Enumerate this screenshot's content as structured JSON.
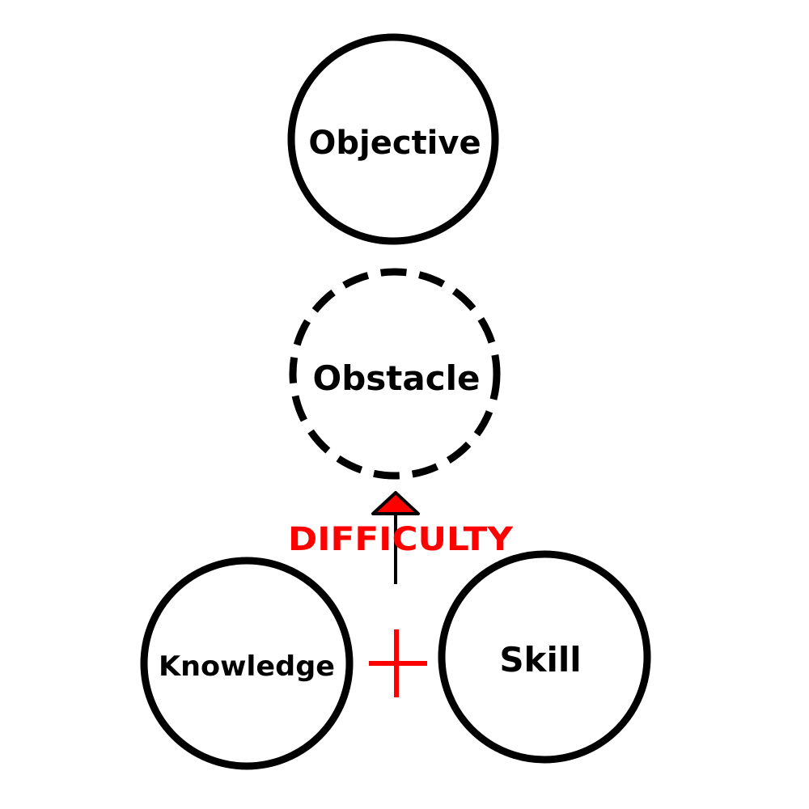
{
  "nodes": {
    "objective": {
      "label": "Objective",
      "style": "solid"
    },
    "obstacle": {
      "label": "Obstacle",
      "style": "dashed"
    },
    "knowledge": {
      "label": "Knowledge",
      "style": "solid"
    },
    "skill": {
      "label": "Skill",
      "style": "solid"
    }
  },
  "connector": {
    "label": "DIFFICULTY",
    "operator": "+"
  },
  "colors": {
    "stroke": "#000000",
    "accent": "#ff0000",
    "background": "#ffffff"
  }
}
